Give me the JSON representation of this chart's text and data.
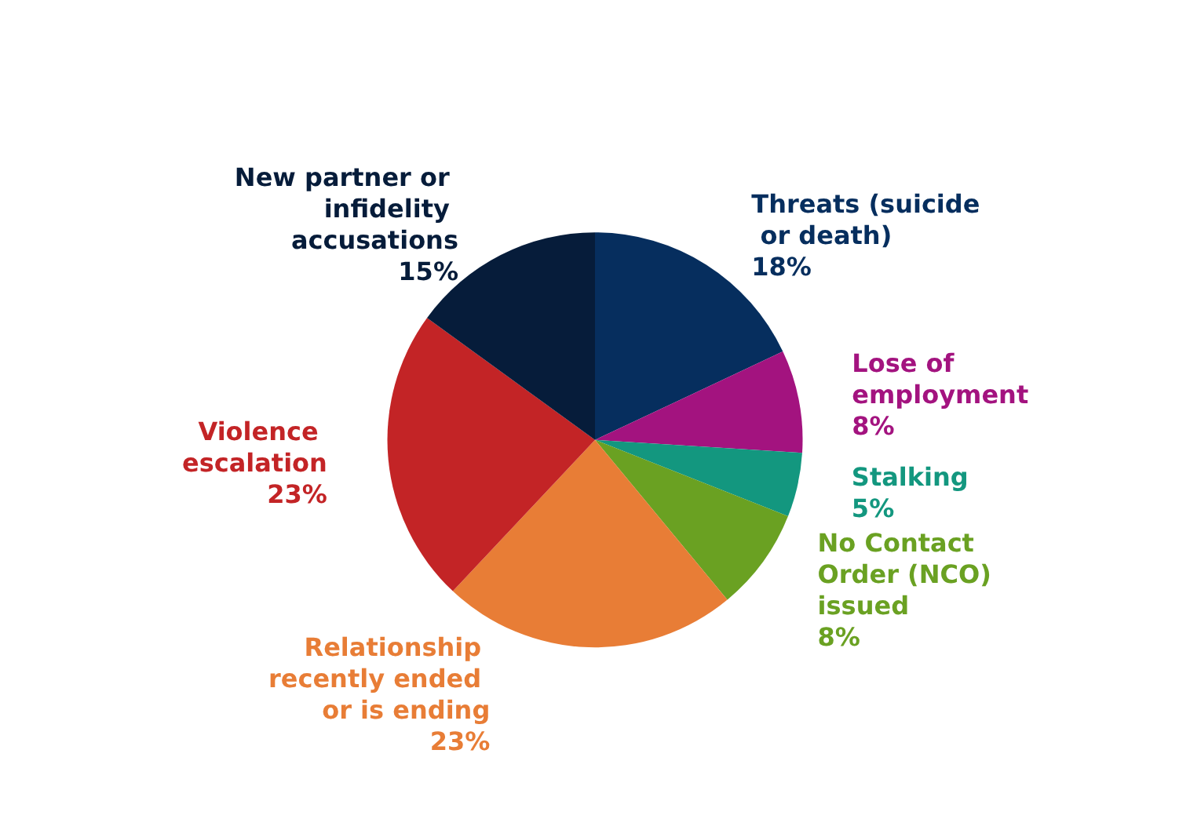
{
  "chart_data": {
    "type": "pie",
    "categories": [
      "Threats (suicide or death)",
      "Lose of employment",
      "Stalking",
      "No Contact Order (NCO) issued",
      "Relationship recently ended or is ending",
      "Violence escalation",
      "New partner or infidelity accusations"
    ],
    "values": [
      18,
      8,
      5,
      8,
      23,
      23,
      15
    ],
    "colors": [
      "#062e5e",
      "#a3137f",
      "#13977f",
      "#6aa122",
      "#e87d36",
      "#c32426",
      "#061c3a"
    ],
    "value_labels": [
      "18%",
      "8%",
      "5%",
      "8%",
      "23%",
      "23%",
      "15%"
    ]
  }
}
